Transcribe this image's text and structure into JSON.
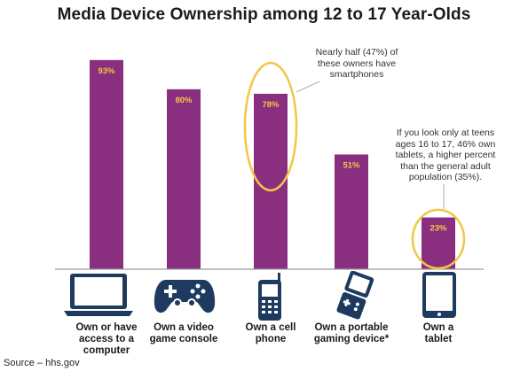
{
  "chart_data": {
    "type": "bar",
    "title": "Media Device Ownership among 12 to 17 Year-Olds",
    "categories": [
      "Own or have access to a computer",
      "Own a video game console",
      "Own a cell phone",
      "Own a portable gaming device*",
      "Own a tablet"
    ],
    "category_lines": [
      [
        "Own or have",
        "access to a",
        "computer"
      ],
      [
        "Own a video",
        "game console"
      ],
      [
        "Own a cell",
        "phone"
      ],
      [
        "Own a portable",
        "gaming device*"
      ],
      [
        "Own a",
        "tablet"
      ]
    ],
    "values": [
      93,
      80,
      78,
      51,
      23
    ],
    "value_labels": [
      "93%",
      "80%",
      "78%",
      "51%",
      "23%"
    ],
    "ylim": [
      0,
      100
    ],
    "bar_color": "#8a2e7f",
    "label_color": "#f5c842",
    "highlight_color": "#f2c744",
    "icon_color": "#1e3a5f",
    "icons": [
      "laptop-icon",
      "gamepad-icon",
      "cell-phone-icon",
      "portable-gaming-device-icon",
      "tablet-icon"
    ],
    "annotations": [
      {
        "target": "Own a cell phone",
        "lines": [
          "Nearly half (47%) of",
          "these owners have",
          "smartphones"
        ]
      },
      {
        "target": "Own a tablet",
        "lines": [
          "If you look only at teens",
          "ages 16 to 17, 46% own",
          "tablets, a higher percent",
          "than the general adult",
          "population (35%)."
        ]
      }
    ]
  },
  "source": "Source – hhs.gov"
}
